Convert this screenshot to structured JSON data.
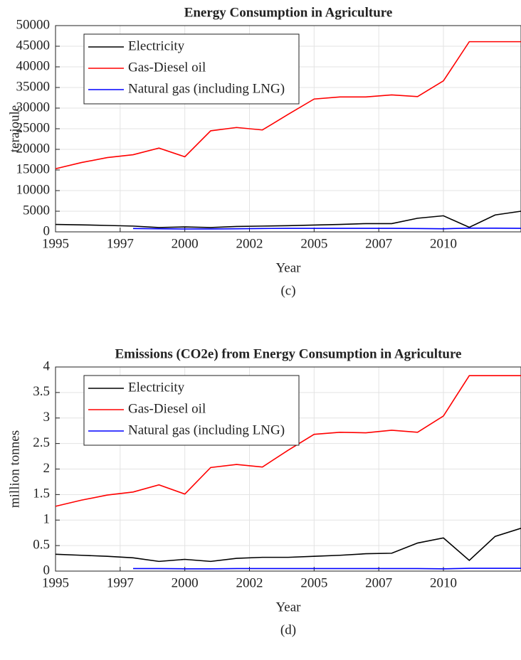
{
  "chart_data": [
    {
      "type": "line",
      "title": "Energy Consumption in Agriculture",
      "xlabel": "Year",
      "ylabel": "terajoule",
      "caption": "(c)",
      "x": [
        1995,
        1996,
        1997,
        1998,
        1999,
        2000,
        2001,
        2002,
        2003,
        2004,
        2005,
        2006,
        2007,
        2008,
        2009,
        2010,
        2011,
        2012,
        2013
      ],
      "series": [
        {
          "name": "Electricity",
          "color": "#000000",
          "values": [
            1800,
            1700,
            1550,
            1400,
            1050,
            1200,
            1050,
            1300,
            1400,
            1500,
            1650,
            1800,
            2000,
            2000,
            3300,
            3900,
            1100,
            4100,
            5000
          ]
        },
        {
          "name": "Gas-Diesel oil",
          "color": "#ff0000",
          "values": [
            15300,
            16800,
            18000,
            18700,
            20300,
            18200,
            24500,
            25300,
            24700,
            28500,
            32200,
            32700,
            32700,
            33200,
            32800,
            36600,
            46100,
            46100,
            46100
          ]
        },
        {
          "name": "Natural gas (including LNG)",
          "color": "#0000ff",
          "values": [
            null,
            null,
            null,
            800,
            750,
            700,
            700,
            750,
            800,
            850,
            850,
            850,
            850,
            850,
            800,
            750,
            900,
            900,
            850
          ]
        }
      ],
      "xlim": [
        1995,
        2013
      ],
      "xticks": [
        1995,
        {
          "value": 1997.5,
          "label": "1997"
        },
        2000,
        {
          "value": 2002.5,
          "label": "2002"
        },
        2005,
        {
          "value": 2007.5,
          "label": "2007"
        },
        2010
      ],
      "ylim": [
        0,
        50000
      ],
      "yticks": [
        0,
        5000,
        10000,
        15000,
        20000,
        25000,
        30000,
        35000,
        40000,
        45000,
        50000
      ],
      "grid": true,
      "legend": "upper-left"
    },
    {
      "type": "line",
      "title": "Emissions (CO2e) from Energy Consumption in Agriculture",
      "xlabel": "Year",
      "ylabel": "million tonnes",
      "caption": "(d)",
      "x": [
        1995,
        1996,
        1997,
        1998,
        1999,
        2000,
        2001,
        2002,
        2003,
        2004,
        2005,
        2006,
        2007,
        2008,
        2009,
        2010,
        2011,
        2012,
        2013
      ],
      "series": [
        {
          "name": "Electricity",
          "color": "#000000",
          "values": [
            0.33,
            0.31,
            0.29,
            0.26,
            0.19,
            0.23,
            0.19,
            0.25,
            0.27,
            0.27,
            0.29,
            0.31,
            0.34,
            0.35,
            0.55,
            0.65,
            0.21,
            0.68,
            0.84
          ]
        },
        {
          "name": "Gas-Diesel oil",
          "color": "#ff0000",
          "values": [
            1.27,
            1.39,
            1.49,
            1.55,
            1.69,
            1.51,
            2.03,
            2.09,
            2.04,
            2.37,
            2.68,
            2.72,
            2.71,
            2.76,
            2.72,
            3.04,
            3.83,
            3.83,
            3.83
          ]
        },
        {
          "name": "Natural gas (including LNG)",
          "color": "#0000ff",
          "values": [
            null,
            null,
            null,
            0.05,
            0.05,
            0.045,
            0.045,
            0.05,
            0.05,
            0.05,
            0.05,
            0.05,
            0.05,
            0.05,
            0.05,
            0.045,
            0.055,
            0.055,
            0.055
          ]
        }
      ],
      "xlim": [
        1995,
        2013
      ],
      "xticks": [
        1995,
        {
          "value": 1997.5,
          "label": "1997"
        },
        2000,
        {
          "value": 2002.5,
          "label": "2002"
        },
        2005,
        {
          "value": 2007.5,
          "label": "2007"
        },
        2010
      ],
      "ylim": [
        0,
        4
      ],
      "yticks": [
        0,
        0.5,
        1,
        1.5,
        2,
        2.5,
        3,
        3.5,
        4
      ],
      "grid": true,
      "legend": "upper-left"
    }
  ]
}
